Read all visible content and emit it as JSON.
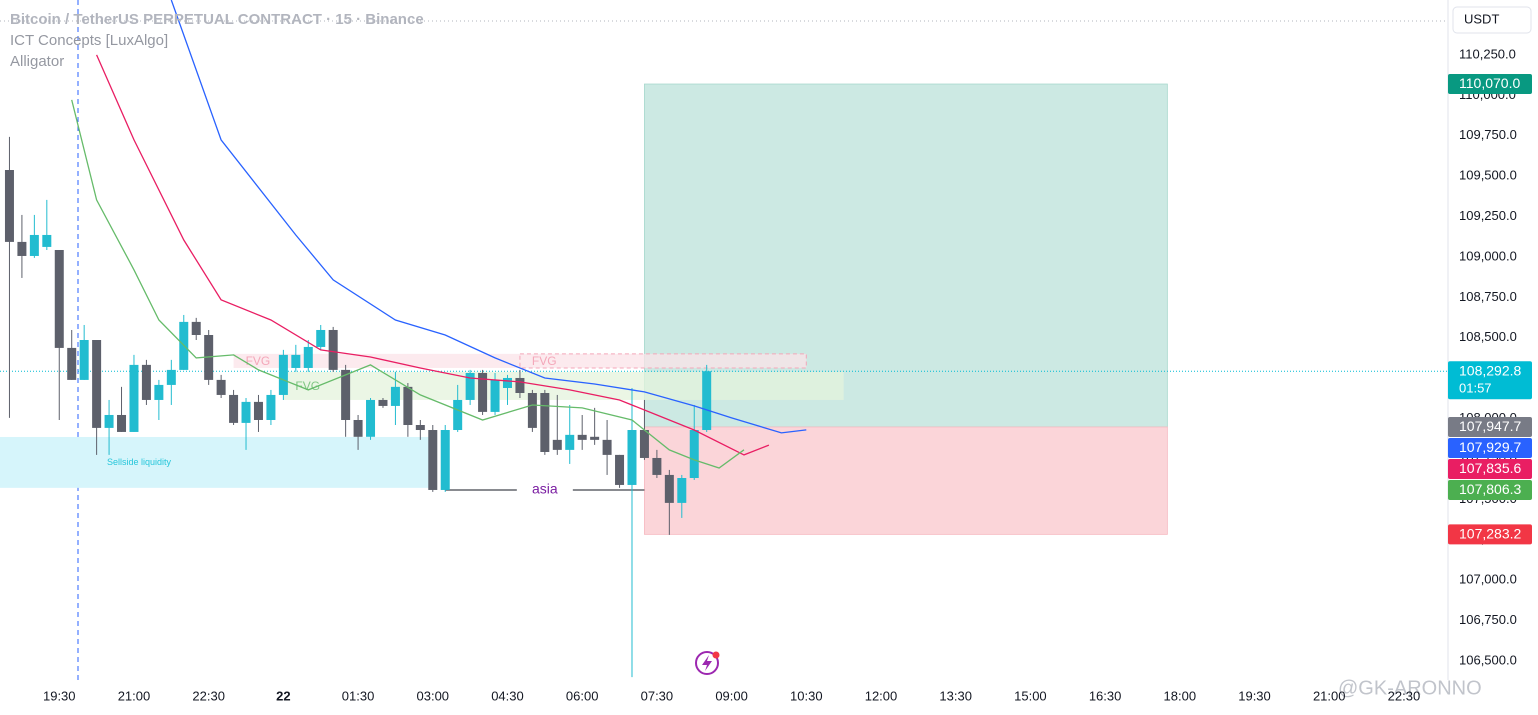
{
  "chart_data": {
    "type": "candlestick",
    "title": "Bitcoin / TetherUS PERPETUAL CONTRACT · 15 · Binance",
    "indicators": [
      "ICT Concepts [LuxAlgo]",
      "Alligator"
    ],
    "currency": "USDT",
    "watermark": "@GK-ARONNO",
    "up_color": "#22bcd0",
    "down_color": "#5d606b",
    "x": [
      -330,
      -315,
      -300,
      -285,
      -270,
      -255,
      -240,
      -225,
      -210,
      -195,
      -180,
      -165,
      -150,
      -135,
      -120,
      -105,
      -90,
      -75,
      -60,
      -45,
      -30,
      -15,
      0,
      15,
      30,
      45,
      60,
      75,
      90,
      105,
      120,
      135,
      150,
      165,
      180,
      195,
      210,
      225,
      240,
      255,
      270,
      285,
      300,
      315,
      330,
      345,
      360,
      375,
      390,
      405,
      420,
      435,
      450,
      465,
      480,
      495,
      510
    ],
    "open": [
      109538,
      109093,
      109006,
      109062,
      109043,
      108437,
      108239,
      108486,
      107942,
      108022,
      107917,
      108332,
      108115,
      108208,
      108301,
      108598,
      108517,
      108239,
      108146,
      107973,
      108103,
      107991,
      108146,
      108313,
      108313,
      108443,
      108548,
      108301,
      107991,
      107887,
      108115,
      108078,
      108196,
      107960,
      107929,
      107558,
      107929,
      108115,
      108282,
      108041,
      108189,
      108251,
      108158,
      108158,
      107868,
      107806,
      107899,
      107887,
      107868,
      107775,
      107589,
      107929,
      107756,
      107651,
      107478,
      107632,
      107929
    ],
    "high": [
      109743,
      109260,
      109260,
      109353,
      109043,
      108548,
      108579,
      108486,
      108115,
      108196,
      108394,
      108363,
      108239,
      108363,
      108641,
      108623,
      108548,
      108270,
      108177,
      108127,
      108146,
      108177,
      108425,
      108456,
      108486,
      108579,
      108567,
      108332,
      108022,
      108127,
      108127,
      108289,
      108220,
      107991,
      107960,
      107960,
      108208,
      108301,
      108301,
      108282,
      108270,
      108301,
      108177,
      108177,
      108146,
      108084,
      108022,
      108066,
      107991,
      107775,
      108189,
      108115,
      107806,
      107682,
      107651,
      108084,
      108332
    ],
    "low": [
      108004,
      108870,
      108994,
      109043,
      107991,
      108239,
      108239,
      107775,
      107775,
      107917,
      107917,
      108084,
      107991,
      108084,
      108301,
      108486,
      108208,
      108127,
      107960,
      107806,
      107917,
      107960,
      108115,
      108289,
      108289,
      108425,
      108289,
      107887,
      107806,
      107868,
      108066,
      107960,
      107887,
      107868,
      107546,
      107546,
      107917,
      108084,
      108022,
      108022,
      108084,
      108127,
      107917,
      107775,
      107775,
      107719,
      107806,
      107837,
      107651,
      107571,
      106400,
      107744,
      107632,
      107280,
      107385,
      107620,
      107917
    ],
    "close": [
      109093,
      109006,
      109136,
      109136,
      108437,
      108239,
      108486,
      107942,
      108022,
      107917,
      108332,
      108115,
      108208,
      108301,
      108598,
      108517,
      108239,
      108146,
      107973,
      108103,
      107991,
      108146,
      108394,
      108394,
      108443,
      108548,
      108301,
      107991,
      107887,
      108115,
      108078,
      108196,
      107960,
      107929,
      107558,
      107929,
      108115,
      108282,
      108041,
      108239,
      108251,
      108158,
      107942,
      107793,
      107806,
      107899,
      107868,
      107868,
      107775,
      107589,
      107929,
      107756,
      107651,
      107478,
      107632,
      107929,
      108292.8
    ],
    "lines": [
      {
        "color": "#2962ff",
        "x": [
          -135,
          -75,
          15,
          60,
          135,
          195,
          255,
          315,
          375,
          435,
          495,
          540,
          600,
          630
        ],
        "values": [
          110590,
          109724,
          109136,
          108858,
          108610,
          108517,
          108375,
          108251,
          108214,
          108165,
          108078,
          108004,
          107911,
          107929.7
        ]
      },
      {
        "color": "#e91e63",
        "x": [
          -225,
          -180,
          -120,
          -75,
          -15,
          45,
          105,
          165,
          225,
          285,
          345,
          405,
          450,
          495,
          555,
          585
        ],
        "values": [
          110250,
          109724,
          109105,
          108734,
          108610,
          108425,
          108381,
          108313,
          108251,
          108227,
          108177,
          108115,
          108022,
          107929,
          107775,
          107835.6
        ]
      },
      {
        "color": "#66bb6a",
        "x": [
          -255,
          -225,
          -180,
          -150,
          -105,
          -60,
          -30,
          30,
          105,
          165,
          240,
          300,
          360,
          420,
          465,
          495,
          525,
          555
        ],
        "values": [
          109972,
          109353,
          108920,
          108610,
          108375,
          108394,
          108301,
          108177,
          108332,
          108146,
          107991,
          108084,
          108066,
          107991,
          107806,
          107744,
          107694,
          107806.3
        ]
      }
    ],
    "position": {
      "from": 435,
      "to": 1065,
      "target": 110070,
      "entry": 107947.7,
      "stop": 107283.2,
      "profit_color": "#cce9e3",
      "loss_color": "#fbd5d9"
    },
    "fvg_zones": [
      {
        "label": "FVG",
        "from": -60,
        "to": 285,
        "top": 108400,
        "bottom": 108313,
        "color": "#fbe3e8",
        "text_color": "#f4a7b9",
        "dashed": false
      },
      {
        "label": "FVG",
        "from": 285,
        "to": 630,
        "top": 108400,
        "bottom": 108313,
        "color": "#fbe3e8",
        "text_color": "#f4a7b9",
        "dashed": true
      },
      {
        "label": "FVG",
        "from": 0,
        "to": 675,
        "top": 108289,
        "bottom": 108115,
        "color": "#e4f3dc",
        "text_color": "#81c784",
        "dashed": false
      }
    ],
    "liquidity": {
      "label": "Sellside liquidity",
      "from": -345,
      "to": 180,
      "top": 107886,
      "bottom": 107571,
      "color": "#d6f5fb",
      "text_color": "#26c6da"
    },
    "session": {
      "label": "asia",
      "from": 195,
      "to": 435,
      "value": 107558,
      "text_color": "#7b1fa2"
    },
    "price_labels": [
      {
        "value": 110070,
        "label": "110,070.0",
        "color": "#089981"
      },
      {
        "value": 108292.8,
        "label": "108,292.8",
        "color": "#00bcd4",
        "countdown": "01:57"
      },
      {
        "value": 107947.7,
        "label": "107,947.7",
        "color": "#787b86"
      },
      {
        "value": 107929.7,
        "label": "107,929.7",
        "color": "#2962ff"
      },
      {
        "value": 107835.6,
        "label": "107,835.6",
        "color": "#e91e63"
      },
      {
        "value": 107806.3,
        "label": "107,806.3",
        "color": "#4caf50"
      },
      {
        "value": 107283.2,
        "label": "107,283.2",
        "color": "#f23645"
      }
    ],
    "grid": false,
    "xlim": [
      -341.4,
      1403.1
    ],
    "xticks": [
      {
        "value": -270,
        "label": "19:30"
      },
      {
        "value": -180,
        "label": "21:00"
      },
      {
        "value": -90,
        "label": "22:30"
      },
      {
        "value": 0,
        "label": "22"
      },
      {
        "value": 90,
        "label": "01:30"
      },
      {
        "value": 180,
        "label": "03:00"
      },
      {
        "value": 270,
        "label": "04:30"
      },
      {
        "value": 360,
        "label": "06:00"
      },
      {
        "value": 450,
        "label": "07:30"
      },
      {
        "value": 540,
        "label": "09:00"
      },
      {
        "value": 630,
        "label": "10:30"
      },
      {
        "value": 720,
        "label": "12:00"
      },
      {
        "value": 810,
        "label": "13:30"
      },
      {
        "value": 900,
        "label": "15:00"
      },
      {
        "value": 990,
        "label": "16:30"
      },
      {
        "value": 1080,
        "label": "18:00"
      },
      {
        "value": 1170,
        "label": "19:30"
      },
      {
        "value": 1260,
        "label": "21:00"
      },
      {
        "value": 1350,
        "label": "22:30"
      }
    ],
    "ylim": [
      106382,
      110590
    ],
    "yticks": [
      {
        "value": 106500,
        "label": "106,500.0"
      },
      {
        "value": 106750,
        "label": "106,750.0"
      },
      {
        "value": 107000,
        "label": "107,000.0"
      },
      {
        "value": 107250,
        "label": "107,250.0"
      },
      {
        "value": 107500,
        "label": "107,500.0"
      },
      {
        "value": 107750,
        "label": "107,750.0"
      },
      {
        "value": 108000,
        "label": "108,000.0"
      },
      {
        "value": 108250,
        "label": "108,250.0"
      },
      {
        "value": 108500,
        "label": "108,500.0"
      },
      {
        "value": 108750,
        "label": "108,750.0"
      },
      {
        "value": 109000,
        "label": "109,000.0"
      },
      {
        "value": 109250,
        "label": "109,250.0"
      },
      {
        "value": 109500,
        "label": "109,500.0"
      },
      {
        "value": 109750,
        "label": "109,750.0"
      },
      {
        "value": 110000,
        "label": "110,000.0"
      },
      {
        "value": 110250,
        "label": "110,250.0"
      }
    ]
  }
}
